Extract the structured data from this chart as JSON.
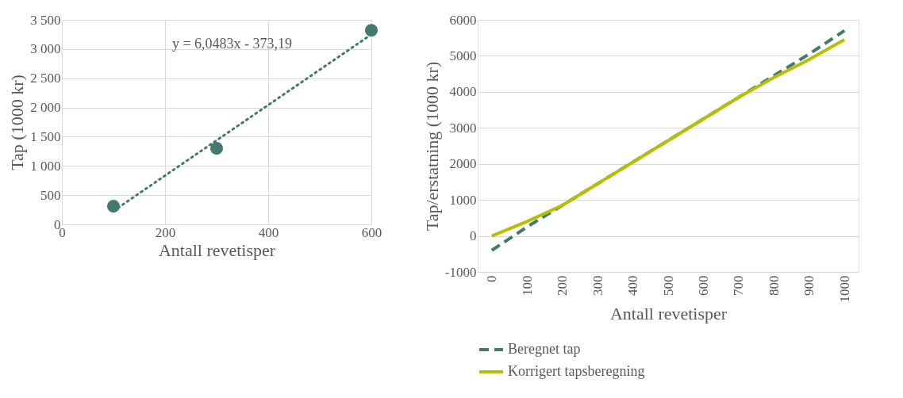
{
  "chart_data": [
    {
      "type": "scatter",
      "xlabel": "Antall revetisper",
      "ylabel": "Tap (1000 kr)",
      "xlim": [
        0,
        600
      ],
      "xticks": [
        0,
        200,
        400,
        600
      ],
      "ylim": [
        0,
        3500
      ],
      "yticks": [
        0,
        500,
        {
          "value": 1000,
          "label": "1 000"
        },
        {
          "value": 1500,
          "label": "1 500"
        },
        {
          "value": 2000,
          "label": "2 000"
        },
        {
          "value": 2500,
          "label": "2 500"
        },
        {
          "value": 3000,
          "label": "3 000"
        },
        {
          "value": 3500,
          "label": "3 500"
        }
      ],
      "grid": true,
      "marker": "circle",
      "annotations": [
        "y = 6,0483x - 373,19"
      ],
      "series": [
        {
          "color": "#427a6f",
          "x": [
            100,
            300,
            600
          ],
          "values": [
            310,
            1300,
            3320
          ]
        },
        {
          "type": "line",
          "line_style": "dotted",
          "marker": "none",
          "color": "#427a6f",
          "x": [
            100,
            600
          ],
          "values": [
            230,
            3250
          ]
        }
      ]
    },
    {
      "type": "line",
      "xlabel": "Antall revetisper",
      "ylabel": "Tap/erstatning (1000 kr)",
      "categories": [
        "0",
        "100",
        "200",
        "300",
        "400",
        "500",
        "600",
        "700",
        "800",
        "900",
        "1000"
      ],
      "ylim": [
        -1000,
        6000
      ],
      "yticks": [
        -1000,
        0,
        1000,
        2000,
        3000,
        4000,
        5000,
        6000
      ],
      "grid": "y",
      "legend": "bottom",
      "marker": "none",
      "series": [
        {
          "name": "Beregnet tap",
          "color": "#427a6f",
          "line_style": "dashed",
          "values": [
            -400,
            250,
            850,
            1450,
            2050,
            2650,
            3250,
            3850,
            4450,
            5050,
            5700
          ]
        },
        {
          "name": "Korrigert tapsberegning",
          "color": "#b5c000",
          "line_style": "solid",
          "values": [
            0,
            400,
            850,
            1450,
            2050,
            2650,
            3250,
            3850,
            4400,
            4900,
            5450
          ]
        }
      ]
    }
  ]
}
